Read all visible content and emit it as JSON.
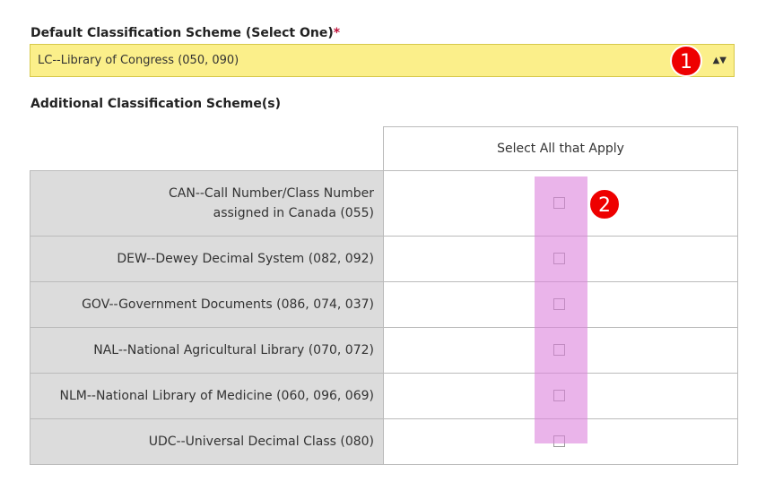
{
  "default_scheme": {
    "label": "Default Classification Scheme (Select One)",
    "required_mark": "*",
    "selected": "LC--Library of Congress (050, 090)",
    "badge": "1"
  },
  "additional": {
    "label": "Additional Classification Scheme(s)",
    "column_header": "Select All that Apply",
    "badge": "2",
    "rows": [
      "CAN--Call Number/Class Number assigned in Canada (055)",
      "DEW--Dewey Decimal System (082, 092)",
      "GOV--Government Documents (086, 074, 037)",
      "NAL--National Agricultural Library (070, 072)",
      "NLM--National Library of Medicine (060, 096, 069)",
      "UDC--Universal Decimal Class (080)"
    ]
  }
}
